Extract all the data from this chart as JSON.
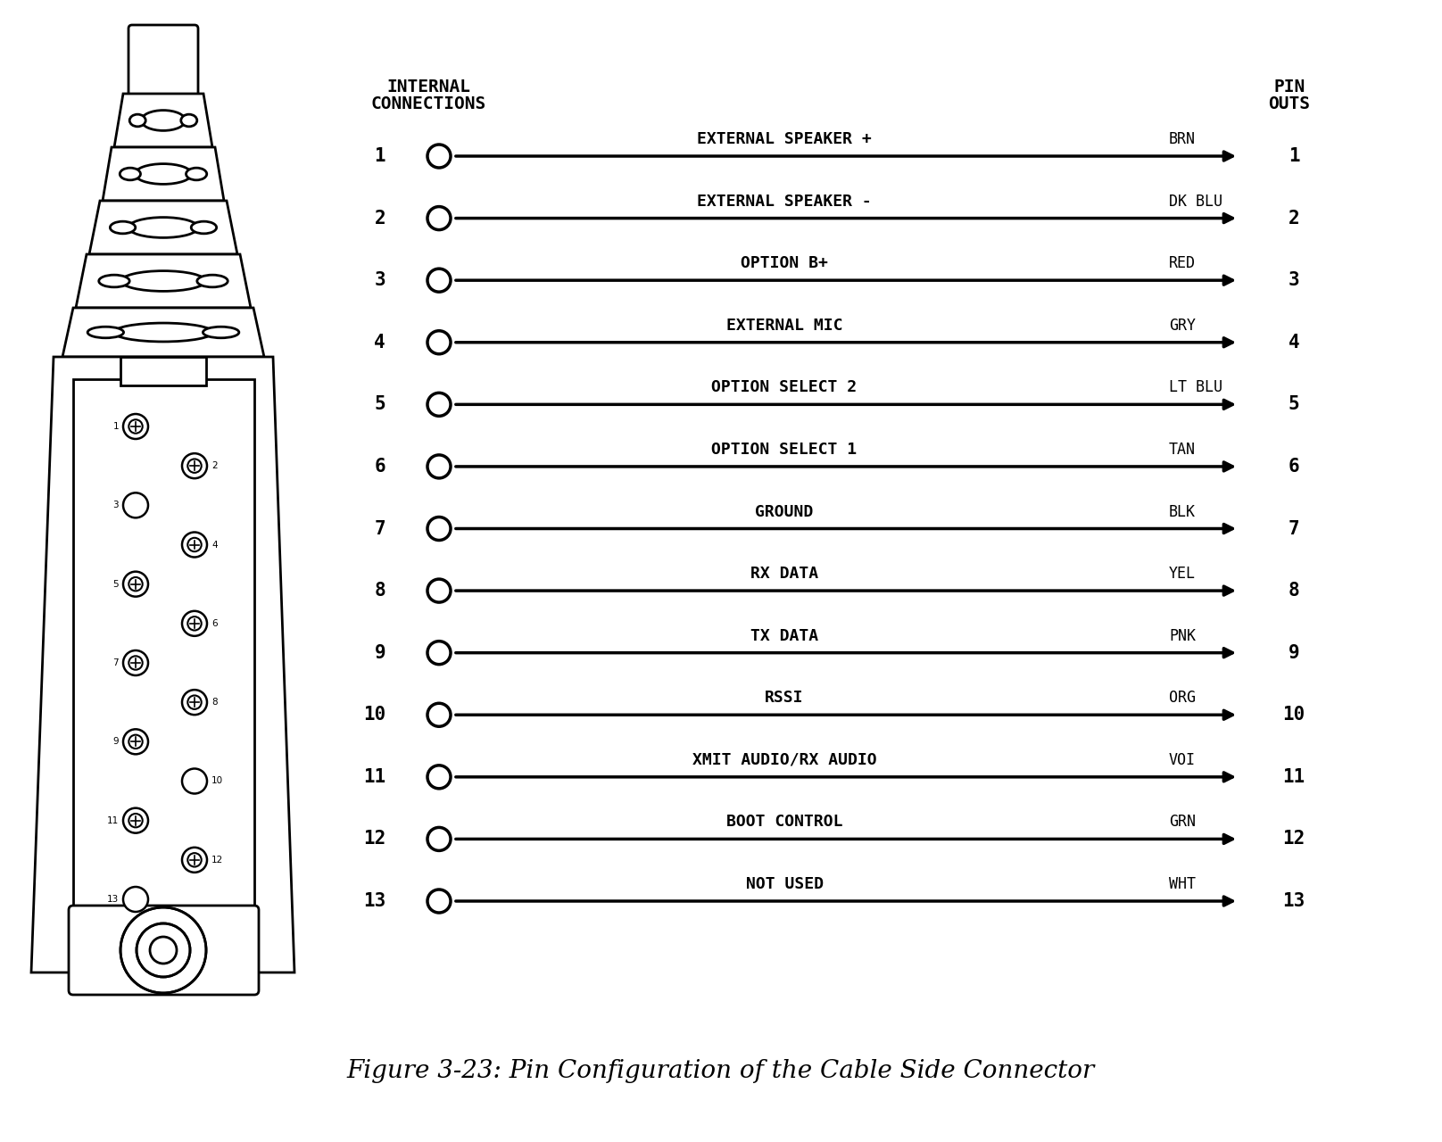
{
  "title": "Figure 3-23: Pin Configuration of the Cable Side Connector",
  "pins": [
    {
      "num": 1,
      "label": "EXTERNAL SPEAKER +",
      "color_code": "BRN"
    },
    {
      "num": 2,
      "label": "EXTERNAL SPEAKER -",
      "color_code": "DK BLU"
    },
    {
      "num": 3,
      "label": "OPTION B+",
      "color_code": "RED"
    },
    {
      "num": 4,
      "label": "EXTERNAL MIC",
      "color_code": "GRY"
    },
    {
      "num": 5,
      "label": "OPTION SELECT 2",
      "color_code": "LT BLU"
    },
    {
      "num": 6,
      "label": "OPTION SELECT 1",
      "color_code": "TAN"
    },
    {
      "num": 7,
      "label": "GROUND",
      "color_code": "BLK"
    },
    {
      "num": 8,
      "label": "RX DATA",
      "color_code": "YEL"
    },
    {
      "num": 9,
      "label": "TX DATA",
      "color_code": "PNK"
    },
    {
      "num": 10,
      "label": "RSSI",
      "color_code": "ORG"
    },
    {
      "num": 11,
      "label": "XMIT AUDIO/RX AUDIO",
      "color_code": "VOI"
    },
    {
      "num": 12,
      "label": "BOOT CONTROL",
      "color_code": "GRN"
    },
    {
      "num": 13,
      "label": "NOT USED",
      "color_code": "WHT"
    }
  ],
  "bg_color": "#ffffff",
  "text_color": "#000000",
  "line_color": "#000000"
}
